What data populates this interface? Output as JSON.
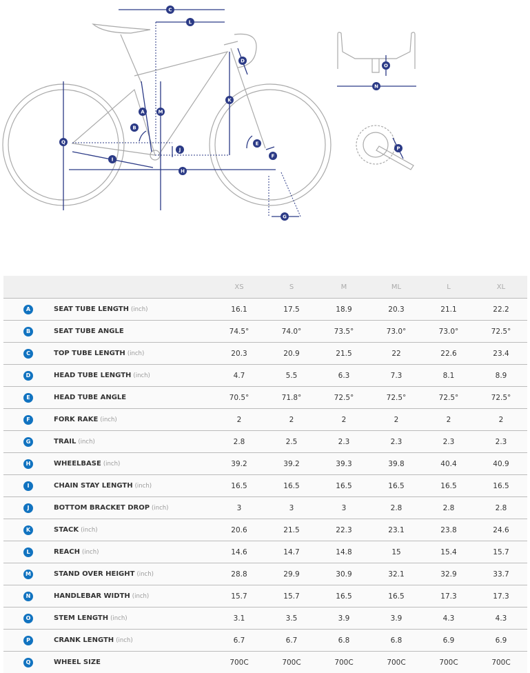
{
  "diagram": {
    "markers": [
      "A",
      "B",
      "C",
      "D",
      "E",
      "F",
      "G",
      "H",
      "I",
      "J",
      "K",
      "L",
      "M",
      "N",
      "O",
      "P",
      "Q"
    ]
  },
  "table": {
    "sizes": [
      "XS",
      "S",
      "M",
      "ML",
      "L",
      "XL"
    ],
    "rows": [
      {
        "key": "A",
        "label": "SEAT TUBE LENGTH",
        "unit": "(inch)",
        "values": [
          "16.1",
          "17.5",
          "18.9",
          "20.3",
          "21.1",
          "22.2"
        ]
      },
      {
        "key": "B",
        "label": "SEAT TUBE ANGLE",
        "unit": "",
        "values": [
          "74.5°",
          "74.0°",
          "73.5°",
          "73.0°",
          "73.0°",
          "72.5°"
        ]
      },
      {
        "key": "C",
        "label": "TOP TUBE LENGTH",
        "unit": "(inch)",
        "values": [
          "20.3",
          "20.9",
          "21.5",
          "22",
          "22.6",
          "23.4"
        ]
      },
      {
        "key": "D",
        "label": "HEAD TUBE LENGTH",
        "unit": "(inch)",
        "values": [
          "4.7",
          "5.5",
          "6.3",
          "7.3",
          "8.1",
          "8.9"
        ]
      },
      {
        "key": "E",
        "label": "HEAD TUBE ANGLE",
        "unit": "",
        "values": [
          "70.5°",
          "71.8°",
          "72.5°",
          "72.5°",
          "72.5°",
          "72.5°"
        ]
      },
      {
        "key": "F",
        "label": "FORK RAKE",
        "unit": "(inch)",
        "values": [
          "2",
          "2",
          "2",
          "2",
          "2",
          "2"
        ]
      },
      {
        "key": "G",
        "label": "TRAIL",
        "unit": "(inch)",
        "values": [
          "2.8",
          "2.5",
          "2.3",
          "2.3",
          "2.3",
          "2.3"
        ]
      },
      {
        "key": "H",
        "label": "WHEELBASE",
        "unit": "(inch)",
        "values": [
          "39.2",
          "39.2",
          "39.3",
          "39.8",
          "40.4",
          "40.9"
        ]
      },
      {
        "key": "I",
        "label": "CHAIN STAY LENGTH",
        "unit": "(inch)",
        "values": [
          "16.5",
          "16.5",
          "16.5",
          "16.5",
          "16.5",
          "16.5"
        ]
      },
      {
        "key": "J",
        "label": "BOTTOM BRACKET DROP",
        "unit": "(inch)",
        "values": [
          "3",
          "3",
          "3",
          "2.8",
          "2.8",
          "2.8"
        ]
      },
      {
        "key": "K",
        "label": "STACK",
        "unit": "(inch)",
        "values": [
          "20.6",
          "21.5",
          "22.3",
          "23.1",
          "23.8",
          "24.6"
        ]
      },
      {
        "key": "L",
        "label": "REACH",
        "unit": "(inch)",
        "values": [
          "14.6",
          "14.7",
          "14.8",
          "15",
          "15.4",
          "15.7"
        ]
      },
      {
        "key": "M",
        "label": "STAND OVER HEIGHT",
        "unit": "(inch)",
        "values": [
          "28.8",
          "29.9",
          "30.9",
          "32.1",
          "32.9",
          "33.7"
        ]
      },
      {
        "key": "N",
        "label": "HANDLEBAR WIDTH",
        "unit": "(inch)",
        "values": [
          "15.7",
          "15.7",
          "16.5",
          "16.5",
          "17.3",
          "17.3"
        ]
      },
      {
        "key": "O",
        "label": "STEM LENGTH",
        "unit": "(inch)",
        "values": [
          "3.1",
          "3.5",
          "3.9",
          "3.9",
          "4.3",
          "4.3"
        ]
      },
      {
        "key": "P",
        "label": "CRANK LENGTH",
        "unit": "(inch)",
        "values": [
          "6.7",
          "6.7",
          "6.8",
          "6.8",
          "6.9",
          "6.9"
        ]
      },
      {
        "key": "Q",
        "label": "WHEEL SIZE",
        "unit": "",
        "values": [
          "700C",
          "700C",
          "700C",
          "700C",
          "700C",
          "700C"
        ]
      }
    ]
  },
  "colors": {
    "badge": "#1173c0",
    "dimension": "#2b3a86"
  }
}
